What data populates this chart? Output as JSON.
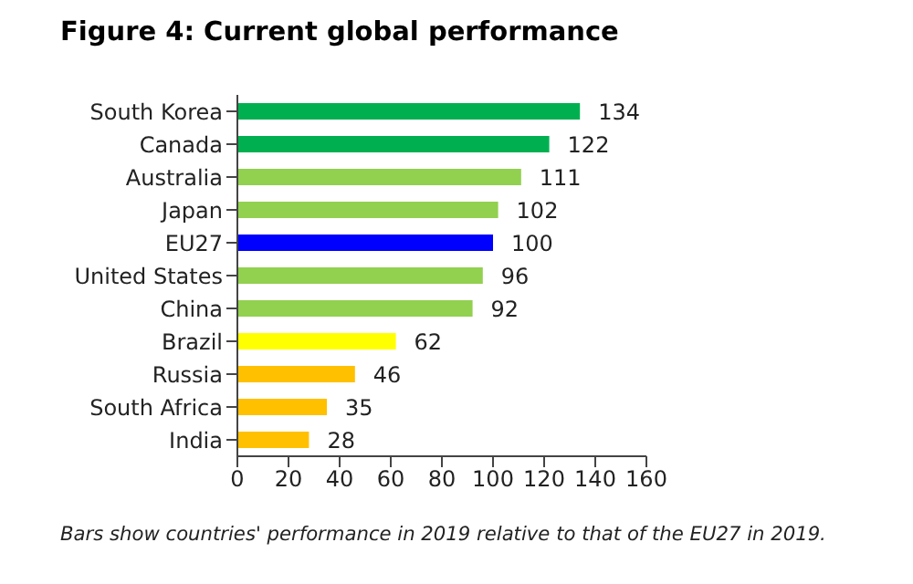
{
  "chart_data": {
    "type": "bar",
    "orientation": "horizontal",
    "title": "Figure 4: Current global performance",
    "categories": [
      "South Korea",
      "Canada",
      "Australia",
      "Japan",
      "EU27",
      "United States",
      "China",
      "Brazil",
      "Russia",
      "South Africa",
      "India"
    ],
    "values": [
      134,
      122,
      111,
      102,
      100,
      96,
      92,
      62,
      46,
      35,
      28
    ],
    "colors": [
      "#00b050",
      "#00b050",
      "#92d050",
      "#92d050",
      "#0000ff",
      "#92d050",
      "#92d050",
      "#ffff00",
      "#ffc000",
      "#ffc000",
      "#ffc000"
    ],
    "data_labels": true,
    "xlim": [
      0,
      160
    ],
    "xticks": [
      0,
      20,
      40,
      60,
      80,
      100,
      120,
      140,
      160
    ],
    "annotations": [
      "Bars show countries' performance in 2019 relative to that of the EU27 in 2019."
    ]
  }
}
